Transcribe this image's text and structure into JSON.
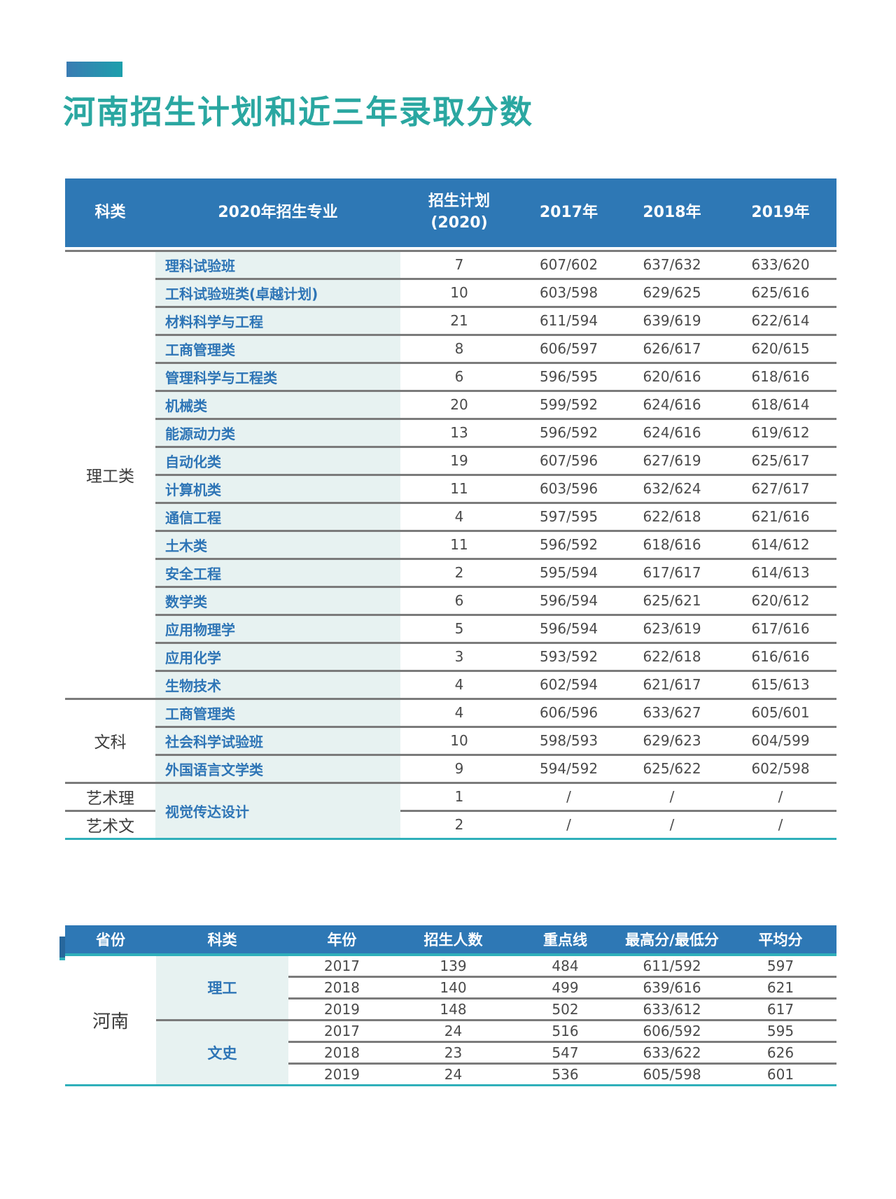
{
  "page": {
    "title": "河南招生计划和近三年录取分数"
  },
  "style": {
    "header_blue": "#2E78B5",
    "accent_teal": "#2FAFBA",
    "title_teal": "#2AA7A1",
    "cell_bg": "#E7F2F1",
    "divider_gray": "#7B7B7B",
    "shadow_blue": "#27679C",
    "grad_left": "#3A7CB3",
    "grad_right": "#1C9FAC"
  },
  "table1": {
    "header": {
      "category": "科类",
      "major": "2020年招生专业",
      "plan_line1": "招生计划",
      "plan_line2": "(2020)",
      "y2017": "2017年",
      "y2018": "2018年",
      "y2019": "2019年"
    },
    "rows": [
      {
        "section": "理工类",
        "section_span": 16,
        "major": "理科试验班",
        "plan": "7",
        "s2017": "607/602",
        "s2018": "637/632",
        "s2019": "633/620"
      },
      {
        "major": "工科试验班类(卓越计划)",
        "plan": "10",
        "s2017": "603/598",
        "s2018": "629/625",
        "s2019": "625/616"
      },
      {
        "major": "材料科学与工程",
        "plan": "21",
        "s2017": "611/594",
        "s2018": "639/619",
        "s2019": "622/614"
      },
      {
        "major": "工商管理类",
        "plan": "8",
        "s2017": "606/597",
        "s2018": "626/617",
        "s2019": "620/615"
      },
      {
        "major": "管理科学与工程类",
        "plan": "6",
        "s2017": "596/595",
        "s2018": "620/616",
        "s2019": "618/616"
      },
      {
        "major": "机械类",
        "plan": "20",
        "s2017": "599/592",
        "s2018": "624/616",
        "s2019": "618/614"
      },
      {
        "major": "能源动力类",
        "plan": "13",
        "s2017": "596/592",
        "s2018": "624/616",
        "s2019": "619/612"
      },
      {
        "major": "自动化类",
        "plan": "19",
        "s2017": "607/596",
        "s2018": "627/619",
        "s2019": "625/617"
      },
      {
        "major": "计算机类",
        "plan": "11",
        "s2017": "603/596",
        "s2018": "632/624",
        "s2019": "627/617"
      },
      {
        "major": "通信工程",
        "plan": "4",
        "s2017": "597/595",
        "s2018": "622/618",
        "s2019": "621/616"
      },
      {
        "major": "土木类",
        "plan": "11",
        "s2017": "596/592",
        "s2018": "618/616",
        "s2019": "614/612"
      },
      {
        "major": "安全工程",
        "plan": "2",
        "s2017": "595/594",
        "s2018": "617/617",
        "s2019": "614/613"
      },
      {
        "major": "数学类",
        "plan": "6",
        "s2017": "596/594",
        "s2018": "625/621",
        "s2019": "620/612"
      },
      {
        "major": "应用物理学",
        "plan": "5",
        "s2017": "596/594",
        "s2018": "623/619",
        "s2019": "617/616"
      },
      {
        "major": "应用化学",
        "plan": "3",
        "s2017": "593/592",
        "s2018": "622/618",
        "s2019": "616/616"
      },
      {
        "major": "生物技术",
        "plan": "4",
        "s2017": "602/594",
        "s2018": "621/617",
        "s2019": "615/613"
      },
      {
        "section": "文科",
        "section_span": 3,
        "major": "工商管理类",
        "plan": "4",
        "s2017": "606/596",
        "s2018": "633/627",
        "s2019": "605/601"
      },
      {
        "major": "社会科学试验班",
        "plan": "10",
        "s2017": "598/593",
        "s2018": "629/623",
        "s2019": "604/599"
      },
      {
        "major": "外国语言文学类",
        "plan": "9",
        "s2017": "594/592",
        "s2018": "625/622",
        "s2019": "602/598"
      },
      {
        "section": "艺术理",
        "section_span": 1,
        "major": "视觉传达设计",
        "major_span": 2,
        "plan": "1",
        "s2017": "/",
        "s2018": "/",
        "s2019": "/"
      },
      {
        "section": "艺术文",
        "section_span": 1,
        "plan": "2",
        "s2017": "/",
        "s2018": "/",
        "s2019": "/"
      }
    ]
  },
  "table2": {
    "header": [
      "省份",
      "科类",
      "年份",
      "招生人数",
      "重点线",
      "最高分/最低分",
      "平均分"
    ],
    "province": "河南",
    "groups": [
      {
        "category": "理工",
        "rows": [
          [
            "2017",
            "139",
            "484",
            "611/592",
            "597"
          ],
          [
            "2018",
            "140",
            "499",
            "639/616",
            "621"
          ],
          [
            "2019",
            "148",
            "502",
            "633/612",
            "617"
          ]
        ]
      },
      {
        "category": "文史",
        "rows": [
          [
            "2017",
            "24",
            "516",
            "606/592",
            "595"
          ],
          [
            "2018",
            "23",
            "547",
            "633/622",
            "626"
          ],
          [
            "2019",
            "24",
            "536",
            "605/598",
            "601"
          ]
        ]
      }
    ]
  }
}
